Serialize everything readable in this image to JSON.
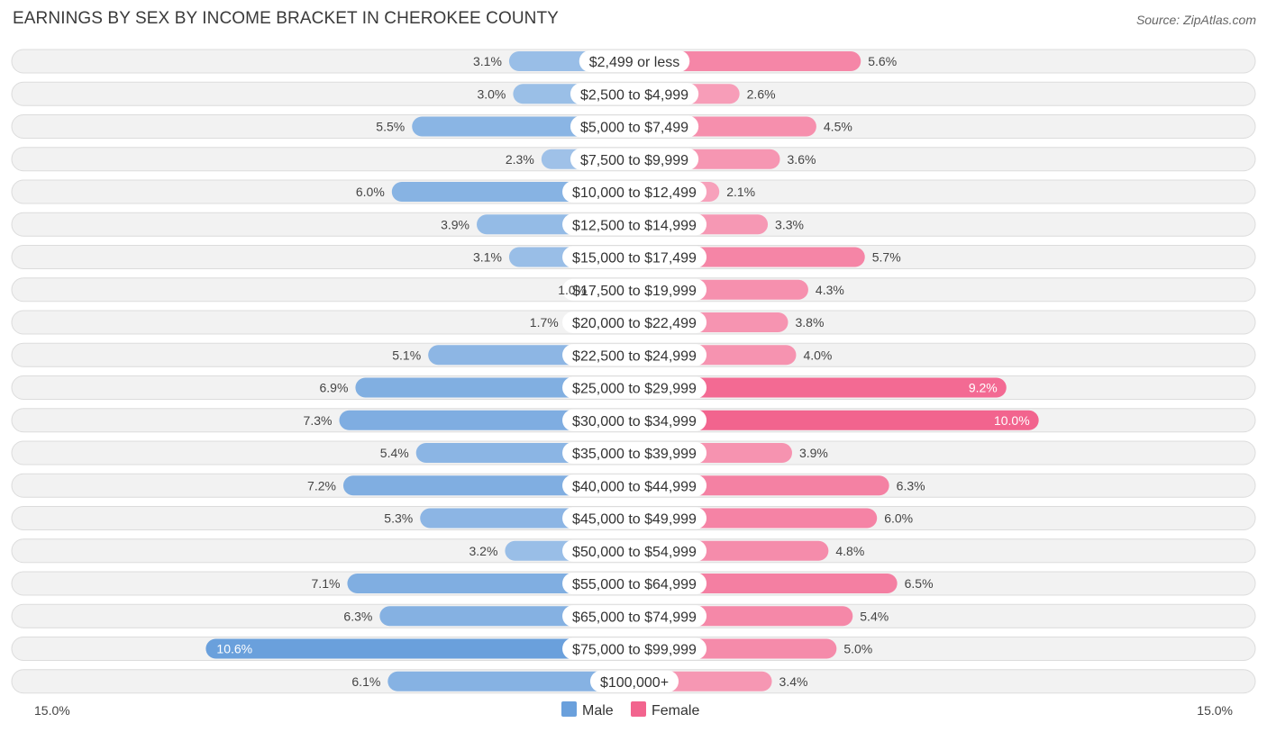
{
  "title": "EARNINGS BY SEX BY INCOME BRACKET IN CHEROKEE COUNTY",
  "source": "Source: ZipAtlas.com",
  "colors": {
    "male_base": "#6aa0dc",
    "female_base": "#f2648e",
    "row_bg": "#f2f2f2",
    "label_bg": "#ffffff"
  },
  "chart_data": {
    "type": "bar",
    "orientation": "horizontal-diverging",
    "title": "EARNINGS BY SEX BY INCOME BRACKET IN CHEROKEE COUNTY",
    "axis_min_label": "15.0%",
    "axis_max_label": "15.0%",
    "xlim": [
      -15,
      15
    ],
    "categories": [
      "$2,499 or less",
      "$2,500 to $4,999",
      "$5,000 to $7,499",
      "$7,500 to $9,999",
      "$10,000 to $12,499",
      "$12,500 to $14,999",
      "$15,000 to $17,499",
      "$17,500 to $19,999",
      "$20,000 to $22,499",
      "$22,500 to $24,999",
      "$25,000 to $29,999",
      "$30,000 to $34,999",
      "$35,000 to $39,999",
      "$40,000 to $44,999",
      "$45,000 to $49,999",
      "$50,000 to $54,999",
      "$55,000 to $64,999",
      "$65,000 to $74,999",
      "$75,000 to $99,999",
      "$100,000+"
    ],
    "series": [
      {
        "name": "Male",
        "values": [
          3.1,
          3.0,
          5.5,
          2.3,
          6.0,
          3.9,
          3.1,
          1.0,
          1.7,
          5.1,
          6.9,
          7.3,
          5.4,
          7.2,
          5.3,
          3.2,
          7.1,
          6.3,
          10.6,
          6.1
        ],
        "labels": [
          "3.1%",
          "3.0%",
          "5.5%",
          "2.3%",
          "6.0%",
          "3.9%",
          "3.1%",
          "1.0%",
          "1.7%",
          "5.1%",
          "6.9%",
          "7.3%",
          "5.4%",
          "7.2%",
          "5.3%",
          "3.2%",
          "7.1%",
          "6.3%",
          "10.6%",
          "6.1%"
        ]
      },
      {
        "name": "Female",
        "values": [
          5.6,
          2.6,
          4.5,
          3.6,
          2.1,
          3.3,
          5.7,
          4.3,
          3.8,
          4.0,
          9.2,
          10.0,
          3.9,
          6.3,
          6.0,
          4.8,
          6.5,
          5.4,
          5.0,
          3.4
        ],
        "labels": [
          "5.6%",
          "2.6%",
          "4.5%",
          "3.6%",
          "2.1%",
          "3.3%",
          "5.7%",
          "4.3%",
          "3.8%",
          "4.0%",
          "9.2%",
          "10.0%",
          "3.9%",
          "6.3%",
          "6.0%",
          "4.8%",
          "6.5%",
          "5.4%",
          "5.0%",
          "3.4%"
        ]
      }
    ],
    "legend": [
      "Male",
      "Female"
    ]
  }
}
